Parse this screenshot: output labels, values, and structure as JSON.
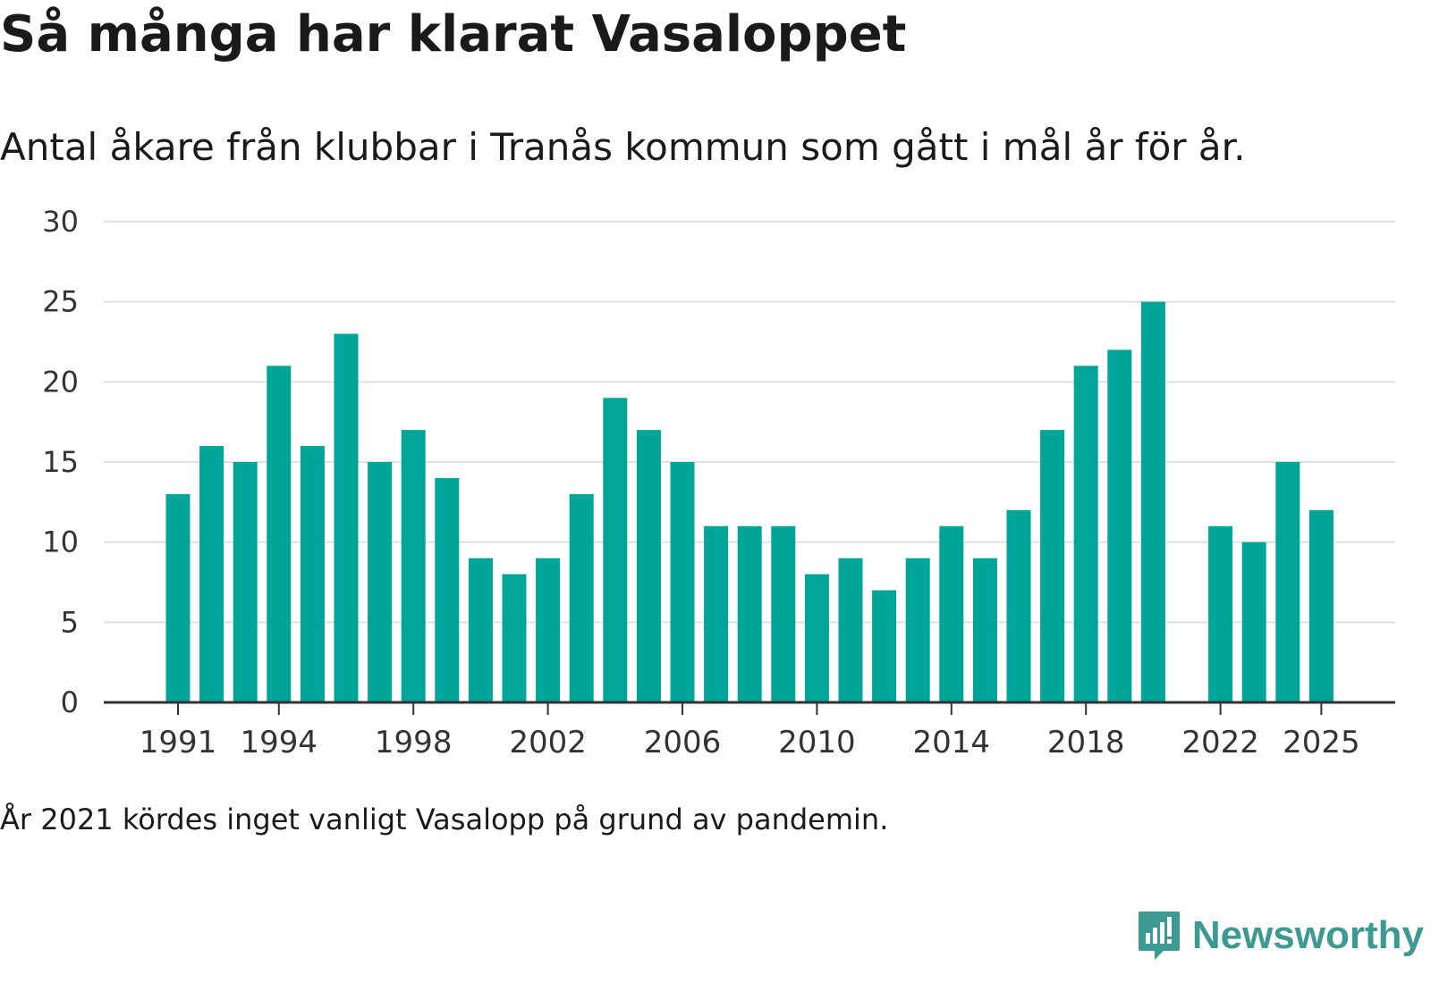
{
  "title": "Så många har klarat Vasaloppet",
  "subtitle": "Antal åkare från klubbar i Tranås kommun som gått i mål år för år.",
  "footnote": "År 2021 kördes inget vanligt Vasalopp på grund av pandemin.",
  "brand": {
    "name": "Newsworthy",
    "icon": "newsworthy-logo-icon",
    "color": "#3c9a93"
  },
  "colors": {
    "bar": "#00a599",
    "grid": "#e0e0e0",
    "axis": "#333333"
  },
  "chart_data": {
    "type": "bar",
    "title": "Så många har klarat Vasaloppet",
    "xlabel": "",
    "ylabel": "",
    "ylim": [
      0,
      30
    ],
    "yticks": [
      0,
      5,
      10,
      15,
      20,
      25,
      30
    ],
    "xtick_labels": [
      "1991",
      "1994",
      "1998",
      "2002",
      "2006",
      "2010",
      "2014",
      "2018",
      "2022",
      "2025"
    ],
    "categories": [
      1991,
      1992,
      1993,
      1994,
      1995,
      1996,
      1997,
      1998,
      1999,
      2000,
      2001,
      2002,
      2003,
      2004,
      2005,
      2006,
      2007,
      2008,
      2009,
      2010,
      2011,
      2012,
      2013,
      2014,
      2015,
      2016,
      2017,
      2018,
      2019,
      2020,
      2021,
      2022,
      2023,
      2024,
      2025
    ],
    "values": [
      13,
      16,
      15,
      21,
      16,
      23,
      15,
      17,
      14,
      9,
      8,
      9,
      13,
      19,
      17,
      15,
      11,
      11,
      11,
      8,
      9,
      7,
      9,
      11,
      9,
      12,
      17,
      21,
      22,
      25,
      null,
      11,
      10,
      15,
      12
    ],
    "grid": true,
    "legend": "none"
  }
}
